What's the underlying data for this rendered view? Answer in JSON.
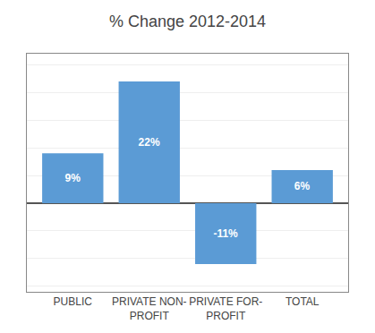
{
  "chart_data": {
    "type": "bar",
    "title": "% Change 2012-2014",
    "categories": [
      "PUBLIC",
      "PRIVATE NON-\nPROFIT",
      "PRIVATE FOR-\nPROFIT",
      "TOTAL"
    ],
    "values": [
      9,
      22,
      -11,
      6
    ],
    "value_labels": [
      "9%",
      "22%",
      "-11%",
      "6%"
    ],
    "data_labels": true,
    "color": "#5B9BD5",
    "ylim": [
      -16,
      27
    ],
    "yticks": [
      -15,
      -10,
      -5,
      0,
      5,
      10,
      15,
      20,
      25
    ],
    "grid": true,
    "tick_labels": "x"
  }
}
